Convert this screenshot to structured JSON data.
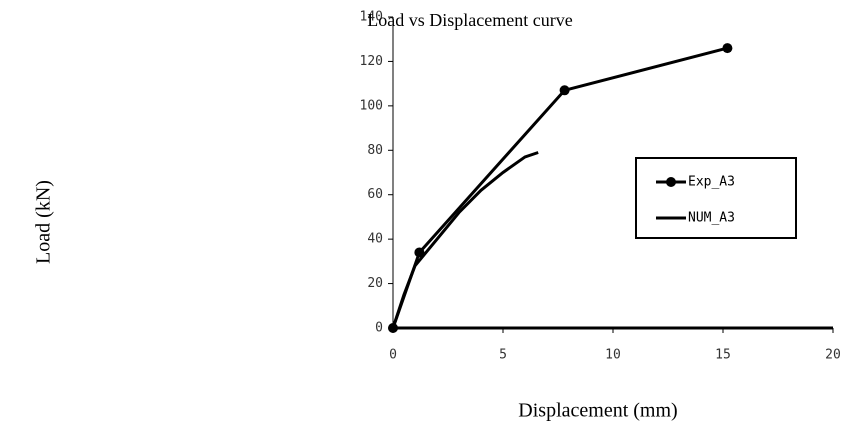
{
  "chart_data": {
    "type": "line",
    "title": "Load vs Displacement curve",
    "x_label": "Displacement (mm)",
    "y_label": "Load (kN)",
    "series": [
      {
        "name": "Exp_A3",
        "color": "#000000",
        "marker": "circle",
        "x": [
          0,
          1.2,
          7.8,
          15.2
        ],
        "values": [
          0,
          34,
          107,
          126
        ]
      },
      {
        "name": "NUM_A3",
        "color": "#000000",
        "marker": "none",
        "x": [
          0,
          0.5,
          1,
          2,
          3,
          4,
          5,
          6,
          6.6
        ],
        "values": [
          0,
          15,
          28,
          40,
          52,
          62,
          70,
          77,
          79
        ]
      }
    ],
    "xlim": [
      0,
      20
    ],
    "xticks": [
      0,
      5,
      10,
      15,
      20
    ],
    "ylim": [
      0,
      140
    ],
    "yticks": [
      0,
      20,
      40,
      60,
      80,
      100,
      120,
      140
    ],
    "grid": false,
    "legend": "right"
  }
}
